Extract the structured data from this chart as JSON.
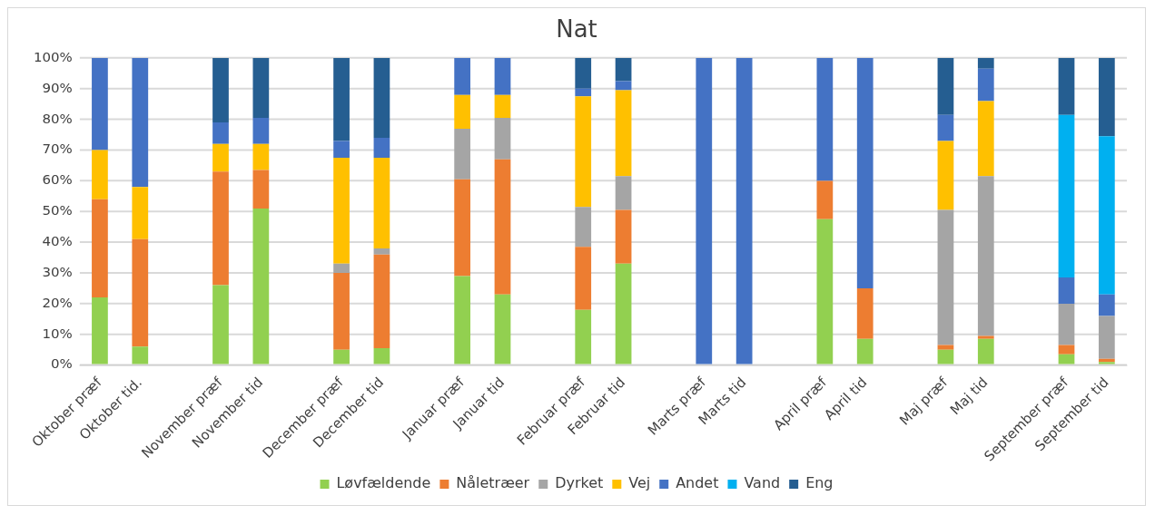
{
  "chart_data": {
    "type": "bar",
    "title": "Nat",
    "stacked": true,
    "grid": "y",
    "legend": "bottom",
    "categories": [
      "Oktober præf",
      "Oktober tid.",
      null,
      "November præf",
      "November tid",
      null,
      "December præf",
      "December tid",
      null,
      "Januar præf",
      "Januar tid",
      null,
      "Februar præf",
      "Februar tid",
      null,
      "Marts præf",
      "Marts tid",
      null,
      "April præf",
      "April tid",
      null,
      "Maj præf",
      "Maj tid",
      null,
      "September præf",
      "September tid"
    ],
    "ylim": [
      0,
      100
    ],
    "yticks": [
      {
        "value": 0,
        "label": "0%"
      },
      {
        "value": 10,
        "label": "10%"
      },
      {
        "value": 20,
        "label": "20%"
      },
      {
        "value": 30,
        "label": "30%"
      },
      {
        "value": 40,
        "label": "40%"
      },
      {
        "value": 50,
        "label": "50%"
      },
      {
        "value": 60,
        "label": "60%"
      },
      {
        "value": 70,
        "label": "70%"
      },
      {
        "value": 80,
        "label": "80%"
      },
      {
        "value": 90,
        "label": "90%"
      },
      {
        "value": 100,
        "label": "100%"
      }
    ],
    "series": [
      {
        "name": "Løvfældende",
        "color": "#92d050",
        "values": [
          22,
          6,
          null,
          26,
          51,
          null,
          5,
          5.5,
          null,
          29,
          23,
          null,
          18,
          33,
          null,
          0,
          0,
          null,
          47.5,
          8.5,
          null,
          5,
          8.5,
          null,
          3.5,
          1
        ]
      },
      {
        "name": "Nåletræer",
        "color": "#ed7d31",
        "values": [
          32,
          35,
          null,
          37,
          12.5,
          null,
          25,
          30.5,
          null,
          31.5,
          44,
          null,
          20.5,
          17.5,
          null,
          0,
          0,
          null,
          12.5,
          16.5,
          null,
          1.5,
          1,
          null,
          3,
          1
        ]
      },
      {
        "name": "Dyrket",
        "color": "#a5a5a5",
        "values": [
          0,
          0,
          null,
          0,
          0,
          null,
          3,
          2,
          null,
          16.5,
          13.5,
          null,
          13,
          11,
          null,
          0,
          0,
          null,
          0,
          0,
          null,
          44,
          52,
          null,
          13.5,
          14
        ]
      },
      {
        "name": "Vej",
        "color": "#ffc000",
        "values": [
          16,
          17,
          null,
          9,
          8.5,
          null,
          34.5,
          29.5,
          null,
          11,
          7.5,
          null,
          36,
          28,
          null,
          0,
          0,
          null,
          0,
          0,
          null,
          22.5,
          24.5,
          null,
          0,
          0
        ]
      },
      {
        "name": "Andet",
        "color": "#4472c4",
        "values": [
          30,
          42,
          null,
          7,
          8.5,
          null,
          5.5,
          6.5,
          null,
          12,
          12,
          null,
          2.5,
          3,
          null,
          100,
          100,
          null,
          40,
          75,
          null,
          8.5,
          10.5,
          null,
          8.5,
          7
        ]
      },
      {
        "name": "Vand",
        "color": "#00b0f0",
        "values": [
          0,
          0,
          null,
          0,
          0,
          null,
          0,
          0,
          null,
          0,
          0,
          null,
          0,
          0,
          null,
          0,
          0,
          null,
          0,
          0,
          null,
          0,
          0,
          null,
          53,
          51.5
        ]
      },
      {
        "name": "Eng",
        "color": "#255e91",
        "values": [
          0,
          0,
          null,
          21,
          19.5,
          null,
          27,
          26,
          null,
          0,
          0,
          null,
          10,
          7.5,
          null,
          0,
          0,
          null,
          0,
          0,
          null,
          18.5,
          3.5,
          null,
          18.5,
          25.5
        ]
      }
    ]
  }
}
